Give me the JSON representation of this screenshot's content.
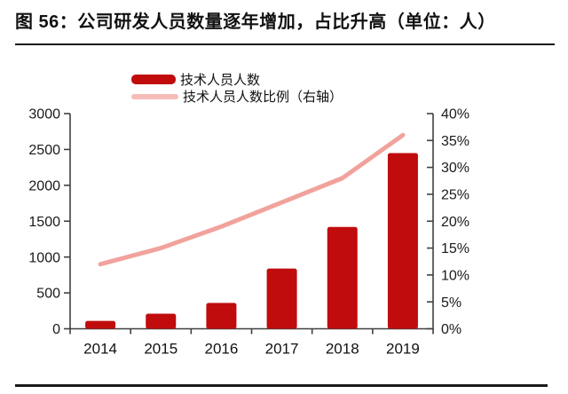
{
  "header": {
    "title": "图 56：公司研发人员数量逐年增加，占比升高（单位：人）"
  },
  "chart_data": {
    "type": "bar",
    "subtype": "combo-bar-line",
    "title": "公司研发人员数量逐年增加，占比升高",
    "unit": "人",
    "categories": [
      "2014",
      "2015",
      "2016",
      "2017",
      "2018",
      "2019"
    ],
    "series": [
      {
        "name": "技术人员人数",
        "type": "bar",
        "axis": "left",
        "values": [
          110,
          210,
          360,
          840,
          1420,
          2450
        ],
        "color": "#c00c0c"
      },
      {
        "name": "技术人员人数比例（右轴）",
        "type": "line",
        "axis": "right",
        "values_percent": [
          12,
          15,
          19,
          23.5,
          28,
          36
        ],
        "color": "#f2a29c"
      }
    ],
    "left_axis": {
      "min": 0,
      "max": 3000,
      "step": 500,
      "tick_labels": [
        "0",
        "500",
        "1000",
        "1500",
        "2000",
        "2500",
        "3000"
      ]
    },
    "right_axis": {
      "min": 0,
      "max": 40,
      "step": 5,
      "unit": "%",
      "tick_labels": [
        "0%",
        "5%",
        "10%",
        "15%",
        "20%",
        "25%",
        "30%",
        "35%",
        "40%"
      ]
    },
    "legend_position": "top",
    "grid": false
  },
  "colors": {
    "bar": "#c00c0c",
    "line": "#f2a29c",
    "axis": "#404040",
    "text": "#1a1a1a",
    "rule": "#1a1a1a",
    "background": "#ffffff"
  }
}
